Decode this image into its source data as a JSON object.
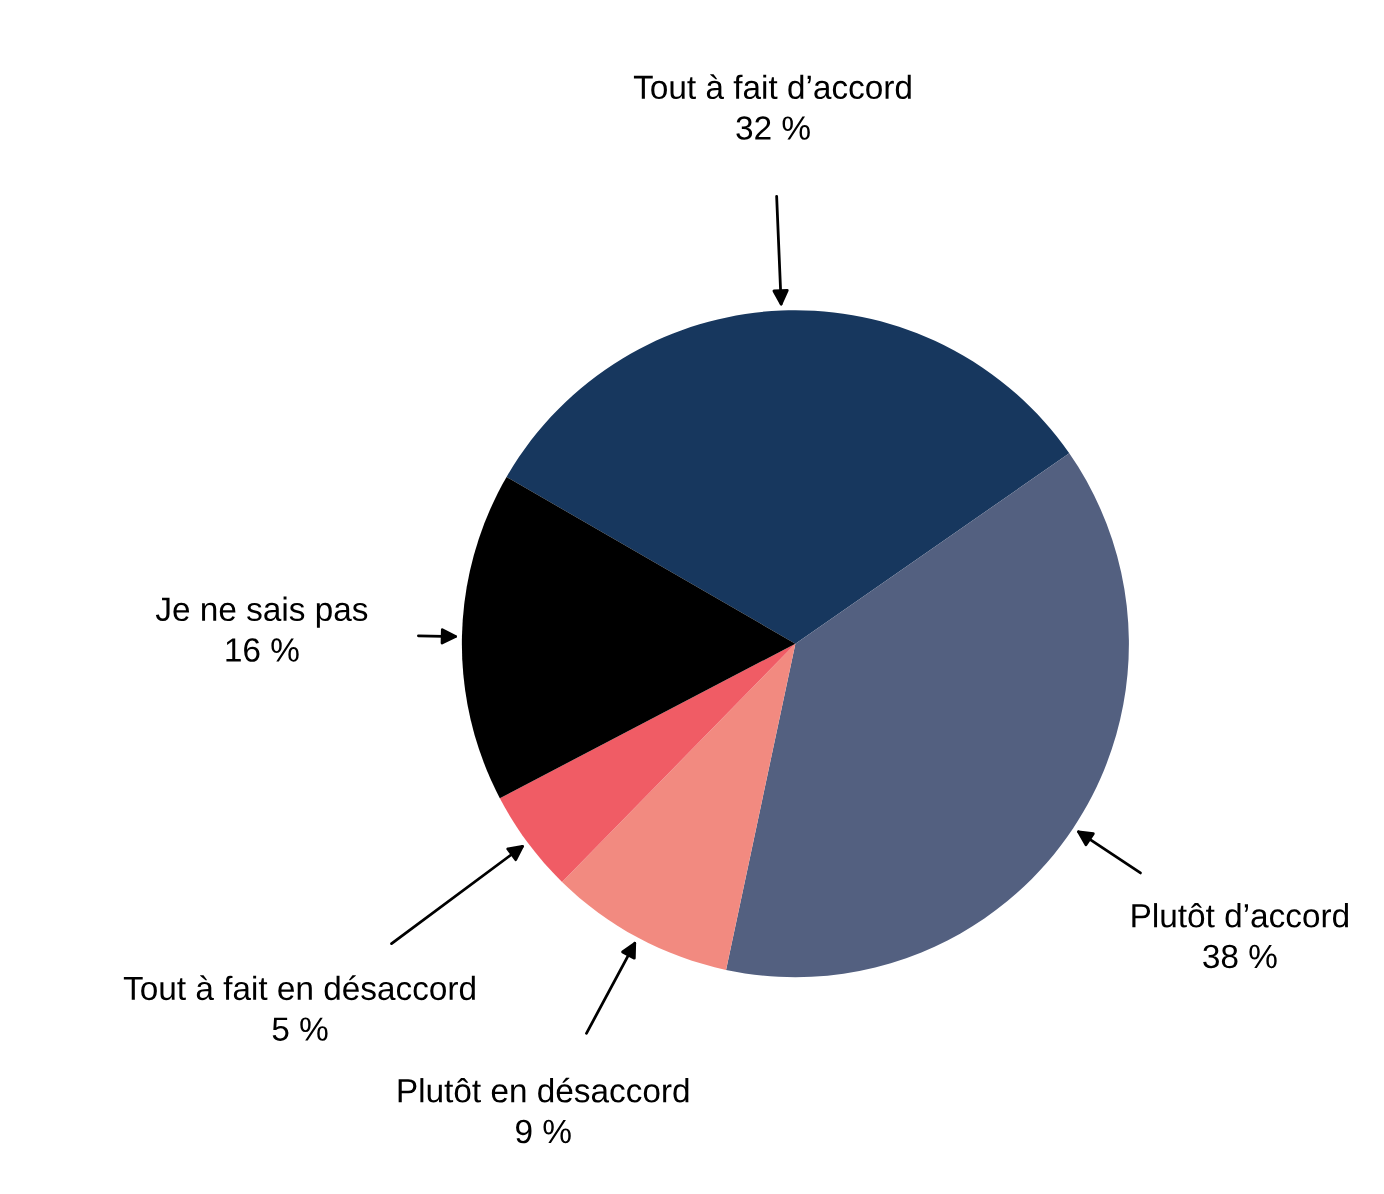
{
  "chart_data": {
    "type": "pie",
    "categories": [
      "Tout à fait d’accord",
      "Plutôt d’accord",
      "Plutôt en désaccord",
      "Tout à fait en désaccord",
      "Je ne sais pas"
    ],
    "values": [
      32,
      38,
      9,
      5,
      16
    ],
    "value_labels": [
      "32 %",
      "38 %",
      "9 %",
      "5 %",
      "16 %"
    ],
    "colors": [
      "#17375e",
      "#536080",
      "#f28a80",
      "#f05c65",
      "#000000"
    ],
    "legend": false
  }
}
